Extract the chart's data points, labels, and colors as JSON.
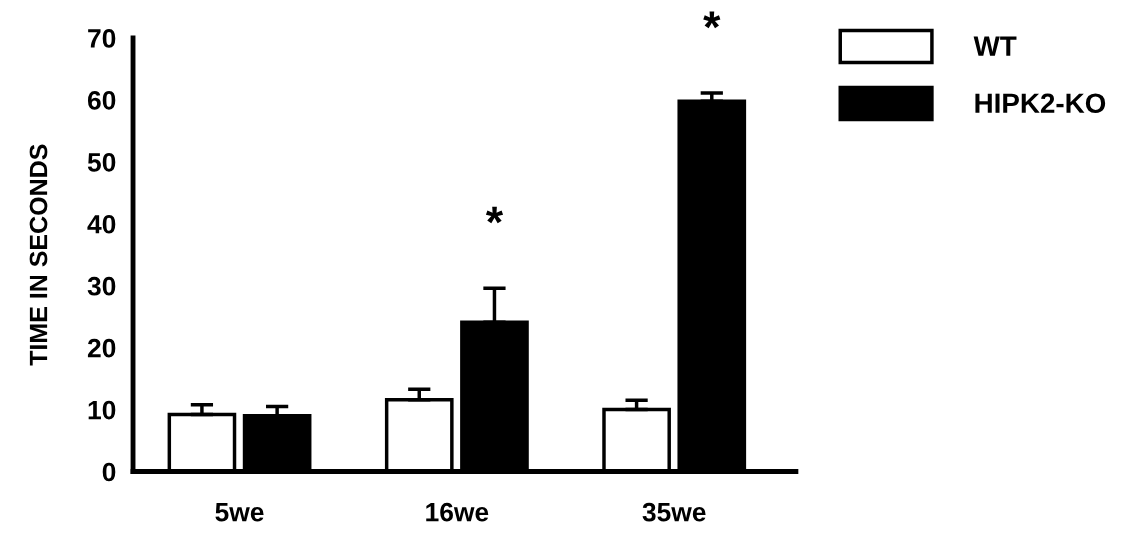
{
  "chart_data": {
    "type": "bar",
    "ylabel": "TIME IN SECONDS",
    "categories": [
      "5we",
      "16we",
      "35we"
    ],
    "series": [
      {
        "name": "WT",
        "color": "#ffffff",
        "values": [
          9.2,
          11.6,
          10.0
        ],
        "errors": [
          [
            9.2,
            10.8
          ],
          [
            11.6,
            13.3
          ],
          [
            10.0,
            11.5
          ]
        ]
      },
      {
        "name": "HIPK2-KO",
        "color": "#000000",
        "values": [
          9.0,
          24.1,
          59.8
        ],
        "errors": [
          [
            9.0,
            10.5
          ],
          [
            24.1,
            29.6
          ],
          [
            59.8,
            61.1
          ]
        ]
      }
    ],
    "annotations": [
      {
        "text": "*",
        "x": "16we",
        "y": 24.1
      },
      {
        "text": "*",
        "x": "35we",
        "y": 59.8
      }
    ],
    "ylim": [
      0,
      70
    ],
    "yticks": [
      0,
      10,
      20,
      30,
      40,
      50,
      60,
      70
    ],
    "grid": false,
    "legend": "top right"
  }
}
